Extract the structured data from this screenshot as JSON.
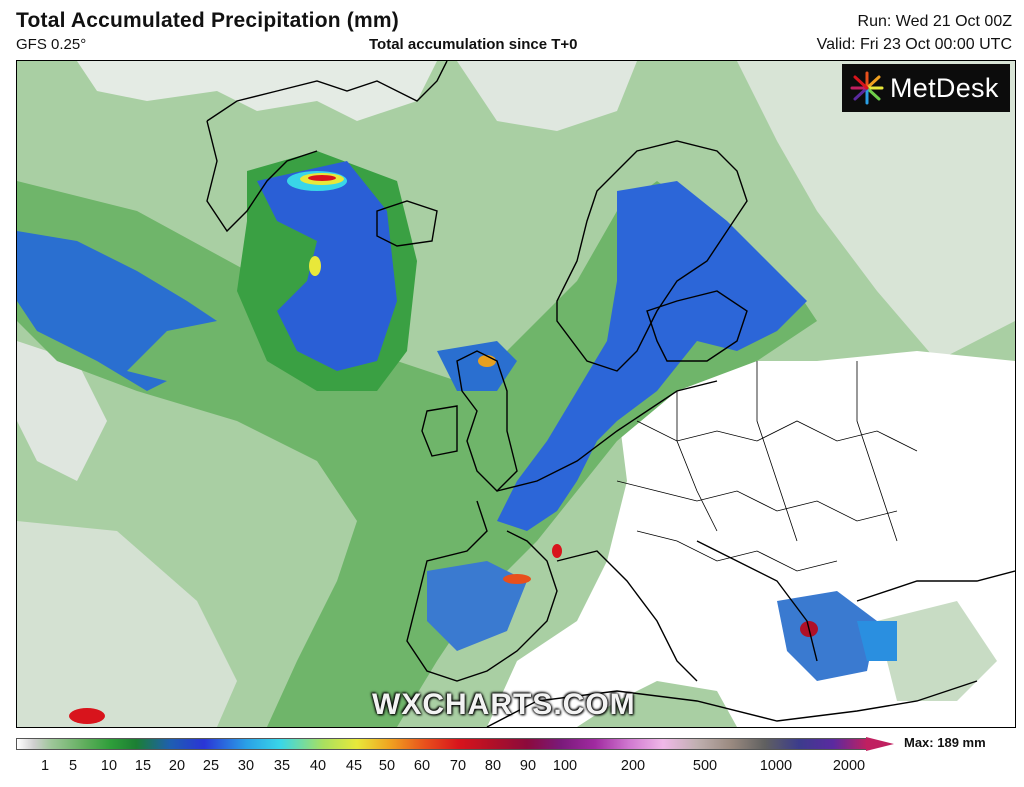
{
  "header": {
    "title": "Total Accumulated Precipitation (mm)",
    "model": "GFS 0.25°",
    "subtitle": "Total accumulation since T+0",
    "run": "Run: Wed 21 Oct 00Z",
    "valid": "Valid: Fri 23 Oct 00:00 UTC"
  },
  "logo": {
    "text": "MetDesk",
    "icon": "metdesk-star-logo"
  },
  "watermark": "WXCHARTS.COM",
  "legend": {
    "max_label": "Max: 189 mm",
    "ticks": [
      "1",
      "5",
      "10",
      "15",
      "20",
      "25",
      "30",
      "35",
      "40",
      "45",
      "50",
      "60",
      "70",
      "80",
      "90",
      "100",
      "200",
      "500",
      "1000",
      "2000"
    ]
  },
  "colors": {
    "no_precip": "#ffffff",
    "light_grey": "#cfcfcf",
    "light_green": "#9fc79a",
    "green": "#2e9e3a",
    "blue": "#2a35d6",
    "cyan": "#39d6e8",
    "yellow": "#e8e83a",
    "red": "#d8141c",
    "max_arrow": "#c02060"
  }
}
